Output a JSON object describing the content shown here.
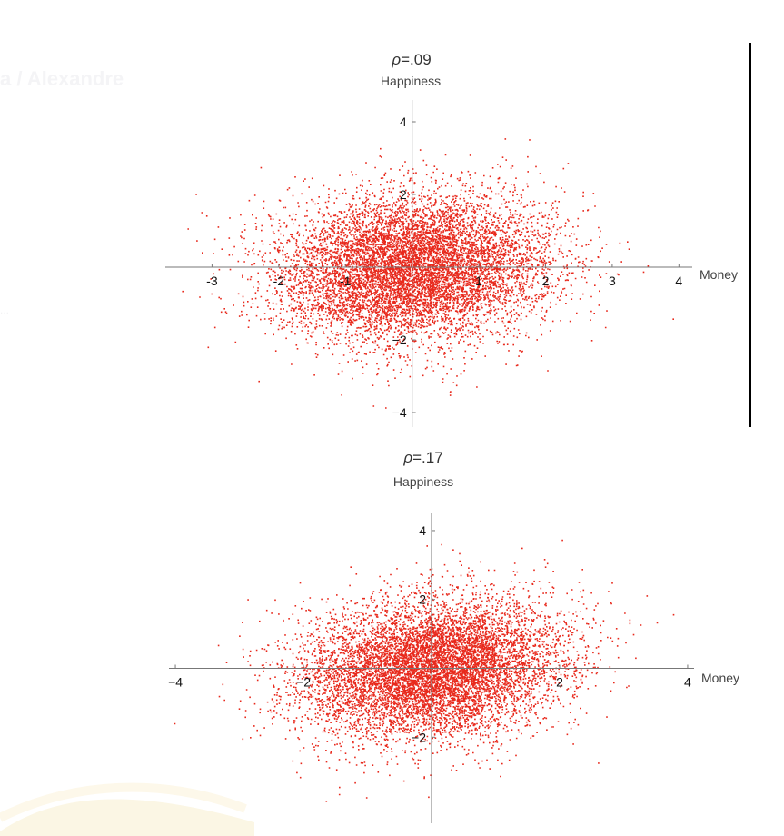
{
  "background": {
    "ghost_text": "a / Alexandre",
    "ghost_small_text": "..."
  },
  "colors": {
    "points": "#e8291c",
    "axes": "#777777",
    "divider": "#000000",
    "text": "#333333"
  },
  "chart_data": [
    {
      "type": "scatter",
      "title_symbol": "ρ",
      "title_value": "=.09",
      "rho": 0.09,
      "xlabel": "Money",
      "ylabel": "Happiness",
      "xlim": [
        -3.7,
        4.2
      ],
      "ylim": [
        -4.4,
        4.6
      ],
      "xticks": [
        -3,
        -2,
        -1,
        1,
        2,
        3,
        4
      ],
      "yticks": [
        -4,
        -2,
        2,
        4
      ],
      "x_tick_labels": [
        "-3",
        "-2",
        "-1",
        "1",
        "2",
        "3",
        "4"
      ],
      "y_tick_labels": [
        "−4",
        "−2",
        "2",
        "4"
      ],
      "n_points": 9000,
      "x_std": 1.0,
      "y_std": 1.0,
      "grid": false,
      "legend": "none"
    },
    {
      "type": "scatter",
      "title_symbol": "ρ",
      "title_value": "=.17",
      "rho": 0.17,
      "xlabel": "Money",
      "ylabel": "Happiness",
      "xlim": [
        -4.1,
        4.1
      ],
      "ylim": [
        -4.5,
        4.5
      ],
      "xticks": [
        -4,
        -2,
        2,
        4
      ],
      "yticks": [
        -2,
        2,
        4
      ],
      "x_tick_labels": [
        "−4",
        "−2",
        "2",
        "4"
      ],
      "y_tick_labels": [
        "−2",
        "2",
        "4"
      ],
      "n_points": 9000,
      "x_std": 1.0,
      "y_std": 1.0,
      "grid": false,
      "legend": "none"
    }
  ]
}
